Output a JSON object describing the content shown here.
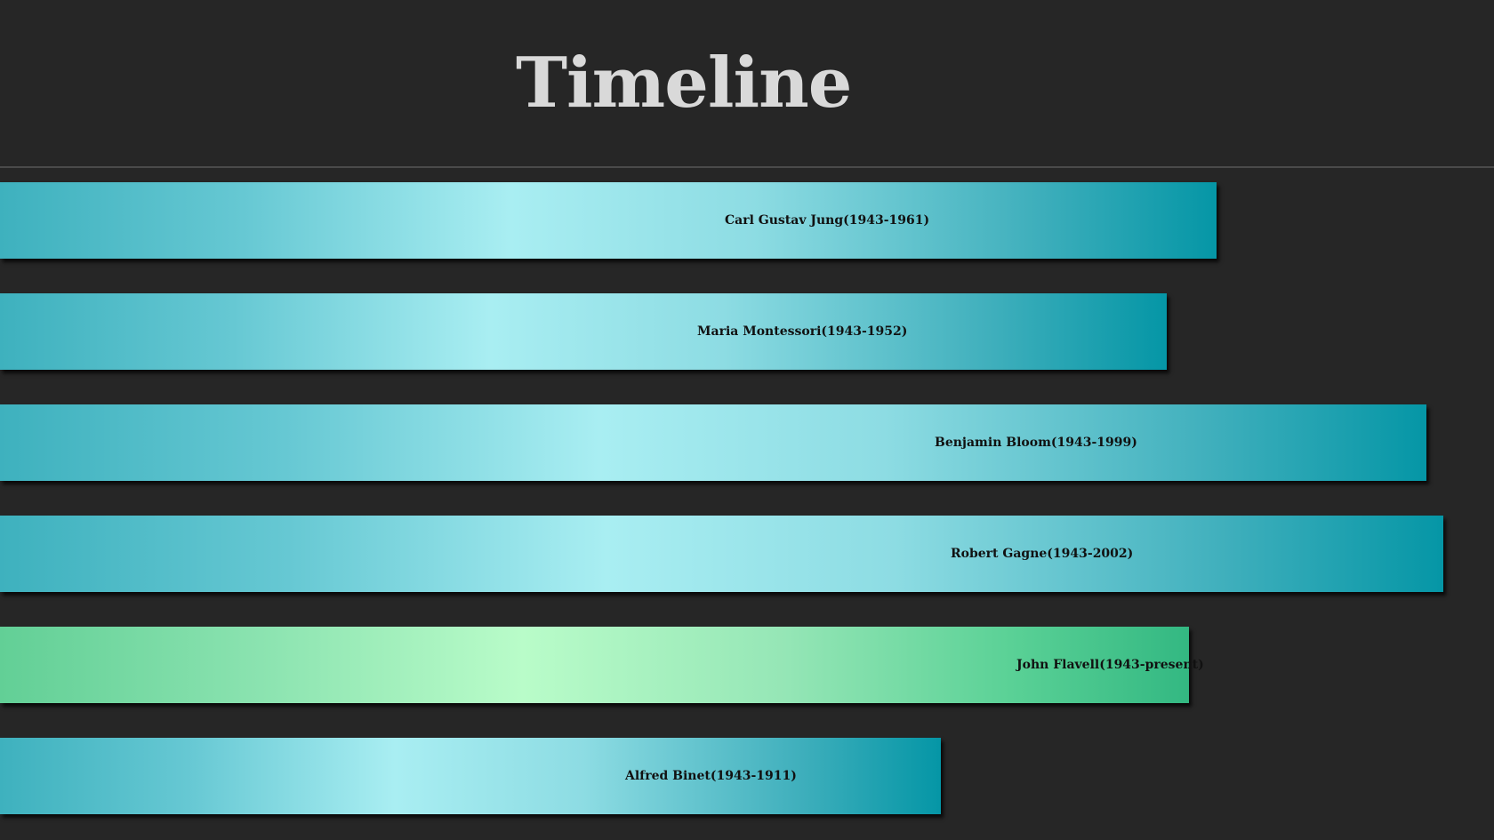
{
  "title": "Timeline",
  "colors": {
    "background": "#262626",
    "title": "#d9d9d9",
    "teal": "#0596a6",
    "green": "#33b882"
  },
  "entries": [
    {
      "label": "Carl Gustav Jung(1943-1961)",
      "color": "teal"
    },
    {
      "label": "Maria Montessori(1943-1952)",
      "color": "teal"
    },
    {
      "label": "Benjamin Bloom(1943-1999)",
      "color": "teal"
    },
    {
      "label": "Robert Gagne(1943-2002)",
      "color": "teal"
    },
    {
      "label": "John Flavell(1943-present)",
      "color": "green"
    },
    {
      "label": "Alfred Binet(1943-1911)",
      "color": "teal"
    }
  ]
}
